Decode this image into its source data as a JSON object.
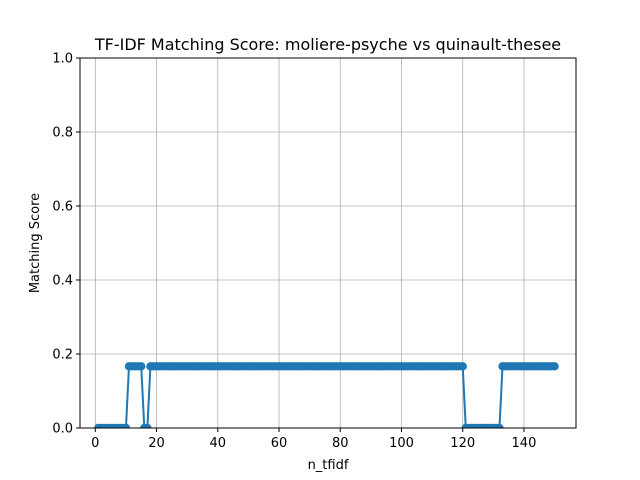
{
  "chart_data": {
    "type": "line",
    "title": "TF-IDF Matching Score: moliere-psyche vs quinault-thesee",
    "xlabel": "n_tfidf",
    "ylabel": "Matching Score",
    "xlim": [
      -5,
      157
    ],
    "ylim": [
      0,
      1.0
    ],
    "xticks": [
      0,
      20,
      40,
      60,
      80,
      100,
      120,
      140
    ],
    "yticks": [
      0.0,
      0.2,
      0.4,
      0.6,
      0.8,
      1.0
    ],
    "ytick_labels": [
      "0.0",
      "0.2",
      "0.4",
      "0.6",
      "0.8",
      "1.0"
    ],
    "grid": true,
    "marker": "circle",
    "color": "#1f77b4",
    "series": [
      {
        "x": [
          1,
          2,
          3,
          4,
          5,
          6,
          7,
          8,
          9,
          10,
          11,
          12,
          13,
          14,
          15,
          16,
          17,
          18,
          19,
          20,
          21,
          22,
          23,
          24,
          25,
          26,
          27,
          28,
          29,
          30,
          31,
          32,
          33,
          34,
          35,
          36,
          37,
          38,
          39,
          40,
          41,
          42,
          43,
          44,
          45,
          46,
          47,
          48,
          49,
          50,
          51,
          52,
          53,
          54,
          55,
          56,
          57,
          58,
          59,
          60,
          61,
          62,
          63,
          64,
          65,
          66,
          67,
          68,
          69,
          70,
          71,
          72,
          73,
          74,
          75,
          76,
          77,
          78,
          79,
          80,
          81,
          82,
          83,
          84,
          85,
          86,
          87,
          88,
          89,
          90,
          91,
          92,
          93,
          94,
          95,
          96,
          97,
          98,
          99,
          100,
          101,
          102,
          103,
          104,
          105,
          106,
          107,
          108,
          109,
          110,
          111,
          112,
          113,
          114,
          115,
          116,
          117,
          118,
          119,
          120,
          121,
          122,
          123,
          124,
          125,
          126,
          127,
          128,
          129,
          130,
          131,
          132,
          133,
          134,
          135,
          136,
          137,
          138,
          139,
          140,
          141,
          142,
          143,
          144,
          145,
          146,
          147,
          148,
          149,
          150
        ],
        "y": [
          0,
          0,
          0,
          0,
          0,
          0,
          0,
          0,
          0,
          0,
          0.1667,
          0.1667,
          0.1667,
          0.1667,
          0.1667,
          0,
          0,
          0.1667,
          0.1667,
          0.1667,
          0.1667,
          0.1667,
          0.1667,
          0.1667,
          0.1667,
          0.1667,
          0.1667,
          0.1667,
          0.1667,
          0.1667,
          0.1667,
          0.1667,
          0.1667,
          0.1667,
          0.1667,
          0.1667,
          0.1667,
          0.1667,
          0.1667,
          0.1667,
          0.1667,
          0.1667,
          0.1667,
          0.1667,
          0.1667,
          0.1667,
          0.1667,
          0.1667,
          0.1667,
          0.1667,
          0.1667,
          0.1667,
          0.1667,
          0.1667,
          0.1667,
          0.1667,
          0.1667,
          0.1667,
          0.1667,
          0.1667,
          0.1667,
          0.1667,
          0.1667,
          0.1667,
          0.1667,
          0.1667,
          0.1667,
          0.1667,
          0.1667,
          0.1667,
          0.1667,
          0.1667,
          0.1667,
          0.1667,
          0.1667,
          0.1667,
          0.1667,
          0.1667,
          0.1667,
          0.1667,
          0.1667,
          0.1667,
          0.1667,
          0.1667,
          0.1667,
          0.1667,
          0.1667,
          0.1667,
          0.1667,
          0.1667,
          0.1667,
          0.1667,
          0.1667,
          0.1667,
          0.1667,
          0.1667,
          0.1667,
          0.1667,
          0.1667,
          0.1667,
          0.1667,
          0.1667,
          0.1667,
          0.1667,
          0.1667,
          0.1667,
          0.1667,
          0.1667,
          0.1667,
          0.1667,
          0.1667,
          0.1667,
          0.1667,
          0.1667,
          0.1667,
          0.1667,
          0.1667,
          0.1667,
          0.1667,
          0.1667,
          0,
          0,
          0,
          0,
          0,
          0,
          0,
          0,
          0,
          0,
          0,
          0,
          0.1667,
          0.1667,
          0.1667,
          0.1667,
          0.1667,
          0.1667,
          0.1667,
          0.1667,
          0.1667,
          0.1667,
          0.1667,
          0.1667,
          0.1667,
          0.1667,
          0.1667,
          0.1667,
          0.1667,
          0.1667
        ]
      }
    ]
  }
}
